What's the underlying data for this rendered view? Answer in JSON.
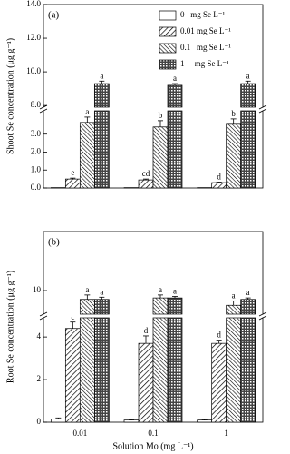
{
  "chart_data": [
    {
      "type": "bar",
      "panel_label": "(a)",
      "ylabel": "Shoot Se concentration (μg g⁻¹)",
      "categories": [
        "0.01",
        "0.1",
        "1"
      ],
      "segments": [
        {
          "ylim": [
            0,
            4.3
          ],
          "yticks": [
            {
              "value": 0,
              "label": "0.0"
            },
            {
              "value": 1,
              "label": "1.0"
            },
            {
              "value": 2,
              "label": "2.0"
            },
            {
              "value": 3,
              "label": "3.0"
            }
          ]
        },
        {
          "ylim": [
            7.9,
            14
          ],
          "yticks": [
            {
              "value": 8,
              "label": "8.0"
            },
            {
              "value": 10,
              "label": "10.0"
            },
            {
              "value": 12,
              "label": "12.0"
            },
            {
              "value": 14,
              "label": "14.0"
            }
          ]
        }
      ],
      "legend": "upper right",
      "series": [
        {
          "name": "0   mg Se L⁻¹",
          "pattern": "none",
          "values": [
            0.02,
            0.02,
            0.02
          ],
          "errors": [
            0,
            0,
            0
          ],
          "letters": [
            null,
            null,
            null
          ]
        },
        {
          "name": "0.01 mg Se L⁻¹",
          "pattern": "diag",
          "values": [
            0.5,
            0.45,
            0.3
          ],
          "errors": [
            0.05,
            0.05,
            0.03
          ],
          "letters": [
            "e",
            "cd",
            "d"
          ]
        },
        {
          "name": "0.1   mg Se L⁻¹",
          "pattern": "backdiag",
          "values": [
            3.65,
            3.4,
            3.55
          ],
          "errors": [
            0.3,
            0.35,
            0.3
          ],
          "letters": [
            "a",
            "b",
            "b"
          ]
        },
        {
          "name": "1     mg Se L⁻¹",
          "pattern": "cross",
          "values": [
            9.3,
            9.2,
            9.3
          ],
          "errors": [
            0.15,
            0.1,
            0.15
          ],
          "letters": [
            "a",
            "a",
            "a"
          ]
        }
      ]
    },
    {
      "type": "bar",
      "panel_label": "(b)",
      "ylabel": "Root Se concentration (μg g⁻¹)",
      "xlabel": "Solution Mo (mg L⁻¹)",
      "categories": [
        "0.01",
        "0.1",
        "1"
      ],
      "segments": [
        {
          "ylim": [
            0,
            4.9
          ],
          "yticks": [
            0,
            2,
            4
          ]
        },
        {
          "ylim": [
            8.4,
            14
          ],
          "yticks": [
            10
          ]
        }
      ],
      "series": [
        {
          "pattern": "none",
          "values": [
            0.15,
            0.1,
            0.1
          ],
          "errors": [
            0.05,
            0.03,
            0.03
          ],
          "letters": [
            null,
            null,
            null
          ]
        },
        {
          "pattern": "diag",
          "values": [
            4.4,
            3.7,
            3.7
          ],
          "errors": [
            0.3,
            0.35,
            0.15
          ],
          "letters": [
            "c",
            "d",
            "d"
          ]
        },
        {
          "pattern": "backdiag",
          "values": [
            9.4,
            9.5,
            9.0
          ],
          "errors": [
            0.3,
            0.2,
            0.3
          ],
          "letters": [
            "a",
            "a",
            "a"
          ]
        },
        {
          "pattern": "cross",
          "values": [
            9.4,
            9.5,
            9.4
          ],
          "errors": [
            0.15,
            0.1,
            0.1
          ],
          "letters": [
            "a",
            "a",
            "a"
          ]
        }
      ]
    }
  ]
}
